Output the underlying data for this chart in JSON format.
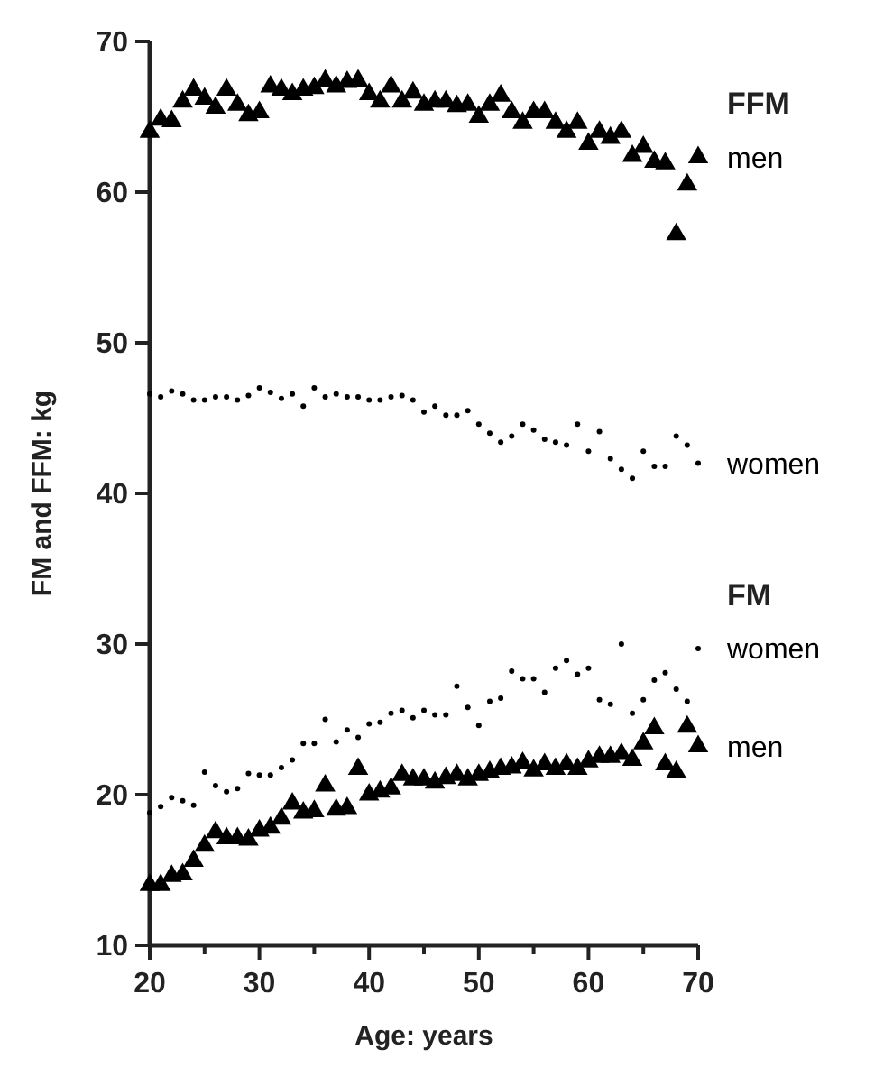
{
  "chart_data": {
    "type": "scatter",
    "xlabel": "Age: years",
    "ylabel": "FM and FFM: kg",
    "xlim": [
      20,
      70
    ],
    "ylim": [
      10,
      70
    ],
    "xticks": [
      20,
      30,
      40,
      50,
      60,
      70
    ],
    "yticks": [
      10,
      20,
      30,
      40,
      50,
      60,
      70
    ],
    "grid": false,
    "x": [
      20,
      21,
      22,
      23,
      24,
      25,
      26,
      27,
      28,
      29,
      30,
      31,
      32,
      33,
      34,
      35,
      36,
      37,
      38,
      39,
      40,
      41,
      42,
      43,
      44,
      45,
      46,
      47,
      48,
      49,
      50,
      51,
      52,
      53,
      54,
      55,
      56,
      57,
      58,
      59,
      60,
      61,
      62,
      63,
      64,
      65,
      66,
      67,
      68,
      69,
      70
    ],
    "series": [
      {
        "name": "men",
        "color": "#000000",
        "marker": "triangle",
        "values": [
          64,
          64.8,
          64.7,
          66,
          66.8,
          66.2,
          65.6,
          66.8,
          65.8,
          65.1,
          65.3,
          67,
          66.8,
          66.5,
          66.8,
          66.9,
          67.4,
          67,
          67.3,
          67.4,
          66.5,
          66,
          67,
          66,
          66.6,
          65.8,
          66,
          66,
          65.7,
          65.8,
          65,
          65.8,
          66.4,
          65.3,
          64.6,
          65.3,
          65.3,
          64.6,
          64,
          64.6,
          63.2,
          64,
          63.6,
          64,
          62.4,
          63,
          62,
          61.9,
          57.2,
          60.5,
          62.3
        ]
      },
      {
        "name": "women",
        "color": "#000000",
        "marker": "circle",
        "values": [
          46.6,
          46.4,
          46.8,
          46.6,
          46.2,
          46.2,
          46.4,
          46.4,
          46.2,
          46.5,
          47,
          46.7,
          46.3,
          46.6,
          45.8,
          47,
          46.4,
          46.6,
          46.4,
          46.4,
          46.2,
          46.2,
          46.4,
          46.5,
          46.2,
          45.4,
          45.8,
          45.2,
          45.2,
          45.5,
          44.6,
          44,
          43.4,
          43.8,
          44.6,
          44.2,
          43.6,
          43.4,
          43.2,
          44.6,
          42.8,
          44.1,
          42.3,
          41.6,
          41,
          42.8,
          41.8,
          41.8,
          43.8,
          43.2,
          42
        ]
      },
      {
        "name": "women",
        "color": "#000000",
        "marker": "circle",
        "values": [
          18.8,
          19.2,
          19.8,
          19.6,
          19.3,
          21.5,
          20.6,
          20.2,
          20.4,
          21.4,
          21.3,
          21.3,
          21.8,
          22.3,
          23.4,
          23.4,
          25,
          23.5,
          24.3,
          23.8,
          24.7,
          24.8,
          25.4,
          25.6,
          25.1,
          25.6,
          25.3,
          25.3,
          27.2,
          25.8,
          24.6,
          26.2,
          26.4,
          28.2,
          27.7,
          27.7,
          26.8,
          28.4,
          28.9,
          28,
          28.4,
          26.3,
          26,
          30,
          25.4,
          26.3,
          27.6,
          28.1,
          27,
          26.2,
          29.7
        ]
      },
      {
        "name": "men",
        "color": "#000000",
        "marker": "triangle",
        "values": [
          14,
          14,
          14.6,
          14.7,
          15.6,
          16.6,
          17.5,
          17.1,
          17.1,
          17,
          17.6,
          17.8,
          18.4,
          19.4,
          18.8,
          18.9,
          20.6,
          19,
          19.1,
          21.7,
          20,
          20.2,
          20.4,
          21.3,
          21,
          21,
          20.8,
          21.1,
          21.3,
          21,
          21.3,
          21.5,
          21.7,
          21.8,
          22.1,
          21.6,
          22,
          21.7,
          22,
          21.7,
          22.2,
          22.5,
          22.5,
          22.7,
          22.3,
          23.4,
          24.4,
          22,
          21.5,
          24.5,
          23.2
        ]
      }
    ],
    "annotations": [
      "FFM",
      "FM"
    ]
  }
}
